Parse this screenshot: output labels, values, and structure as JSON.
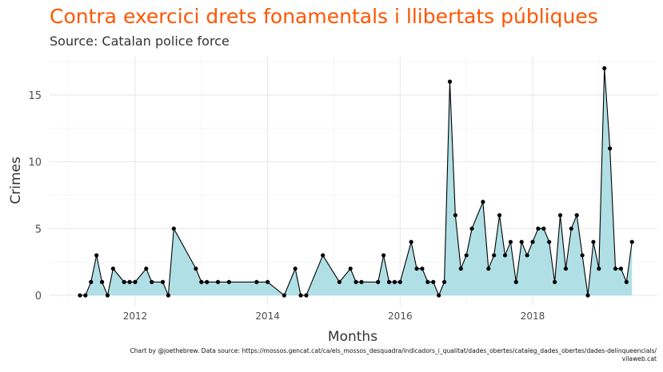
{
  "title": "Contra exercici drets fonamentals i llibertats públiques",
  "subtitle": "Source: Catalan police force",
  "caption": {
    "line1": "Chart by @joethebrew. Data source: https://mossos.gencat.cat/ca/els_mossos_desquadra/indicadors_i_qualitat/dades_obertes/cataleg_dades_obertes/dades-delinqueencials/",
    "line2": "vilaweb.cat"
  },
  "colors": {
    "title": "#ff5500",
    "area": "#b0e0e6",
    "line": "#000000",
    "grid": "#e6e6e6"
  },
  "chart_data": {
    "type": "area",
    "xlabel": "Months",
    "ylabel": "Crimes",
    "x_ticks": [
      "2012",
      "2014",
      "2016",
      "2018"
    ],
    "y_ticks": [
      0,
      5,
      10,
      15
    ],
    "xlim": [
      "2011-01",
      "2019-08"
    ],
    "ylim": [
      0,
      18
    ],
    "grid": true,
    "series": [
      {
        "points": [
          [
            "2011-03",
            0
          ],
          [
            "2011-04",
            0
          ],
          [
            "2011-05",
            1
          ],
          [
            "2011-06",
            3
          ],
          [
            "2011-07",
            1
          ],
          [
            "2011-08",
            0
          ],
          [
            "2011-09",
            2
          ],
          [
            "2011-11",
            1
          ],
          [
            "2011-12",
            1
          ],
          [
            "2012-01",
            1
          ],
          [
            "2012-03",
            2
          ],
          [
            "2012-04",
            1
          ],
          [
            "2012-06",
            1
          ],
          [
            "2012-07",
            0
          ],
          [
            "2012-08",
            5
          ],
          [
            "2012-12",
            2
          ],
          [
            "2013-01",
            1
          ],
          [
            "2013-02",
            1
          ],
          [
            "2013-04",
            1
          ],
          [
            "2013-06",
            1
          ],
          [
            "2013-11",
            1
          ],
          [
            "2014-01",
            1
          ],
          [
            "2014-04",
            0
          ],
          [
            "2014-06",
            2
          ],
          [
            "2014-07",
            0
          ],
          [
            "2014-08",
            0
          ],
          [
            "2014-11",
            3
          ],
          [
            "2015-02",
            1
          ],
          [
            "2015-04",
            2
          ],
          [
            "2015-05",
            1
          ],
          [
            "2015-06",
            1
          ],
          [
            "2015-09",
            1
          ],
          [
            "2015-10",
            3
          ],
          [
            "2015-11",
            1
          ],
          [
            "2015-12",
            1
          ],
          [
            "2016-01",
            1
          ],
          [
            "2016-03",
            4
          ],
          [
            "2016-04",
            2
          ],
          [
            "2016-05",
            2
          ],
          [
            "2016-06",
            1
          ],
          [
            "2016-07",
            1
          ],
          [
            "2016-08",
            0
          ],
          [
            "2016-09",
            1
          ],
          [
            "2016-10",
            16
          ],
          [
            "2016-11",
            6
          ],
          [
            "2016-12",
            2
          ],
          [
            "2017-01",
            3
          ],
          [
            "2017-02",
            5
          ],
          [
            "2017-04",
            7
          ],
          [
            "2017-05",
            2
          ],
          [
            "2017-06",
            3
          ],
          [
            "2017-07",
            6
          ],
          [
            "2017-08",
            3
          ],
          [
            "2017-09",
            4
          ],
          [
            "2017-10",
            1
          ],
          [
            "2017-11",
            4
          ],
          [
            "2017-12",
            3
          ],
          [
            "2018-01",
            4
          ],
          [
            "2018-02",
            5
          ],
          [
            "2018-03",
            5
          ],
          [
            "2018-04",
            4
          ],
          [
            "2018-05",
            1
          ],
          [
            "2018-06",
            6
          ],
          [
            "2018-07",
            2
          ],
          [
            "2018-08",
            5
          ],
          [
            "2018-09",
            6
          ],
          [
            "2018-10",
            3
          ],
          [
            "2018-11",
            0
          ],
          [
            "2018-12",
            4
          ],
          [
            "2019-01",
            2
          ],
          [
            "2019-02",
            17
          ],
          [
            "2019-03",
            11
          ],
          [
            "2019-04",
            2
          ],
          [
            "2019-05",
            2
          ],
          [
            "2019-06",
            1
          ],
          [
            "2019-07",
            4
          ]
        ]
      }
    ]
  }
}
